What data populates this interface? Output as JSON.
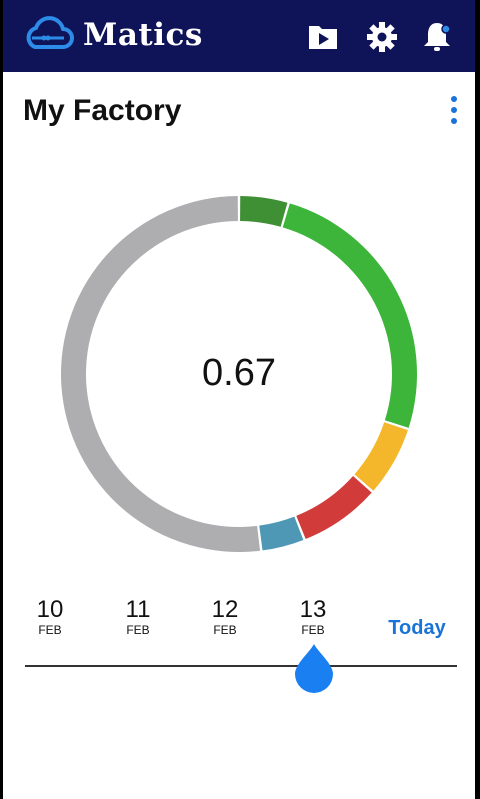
{
  "app": {
    "name": "Matics"
  },
  "header": {
    "title": "My Factory"
  },
  "gauge": {
    "value": "0.67",
    "segments": [
      {
        "name": "segment-dark-green",
        "color": "#3f8f35",
        "fraction": 0.045
      },
      {
        "name": "segment-green",
        "color": "#3db53a",
        "fraction": 0.255
      },
      {
        "name": "segment-yellow",
        "color": "#f4b72b",
        "fraction": 0.065
      },
      {
        "name": "segment-red",
        "color": "#d13c3a",
        "fraction": 0.075
      },
      {
        "name": "segment-blue",
        "color": "#4f98b5",
        "fraction": 0.04
      },
      {
        "name": "segment-gray",
        "color": "#aeaeb1",
        "fraction": 0.52
      }
    ]
  },
  "timeline": {
    "dates": [
      {
        "day": "10",
        "month": "FEB"
      },
      {
        "day": "11",
        "month": "FEB"
      },
      {
        "day": "12",
        "month": "FEB"
      },
      {
        "day": "13",
        "month": "FEB"
      }
    ],
    "today_label": "Today"
  },
  "colors": {
    "topbar": "#0f1458",
    "accent": "#1a73d9"
  }
}
